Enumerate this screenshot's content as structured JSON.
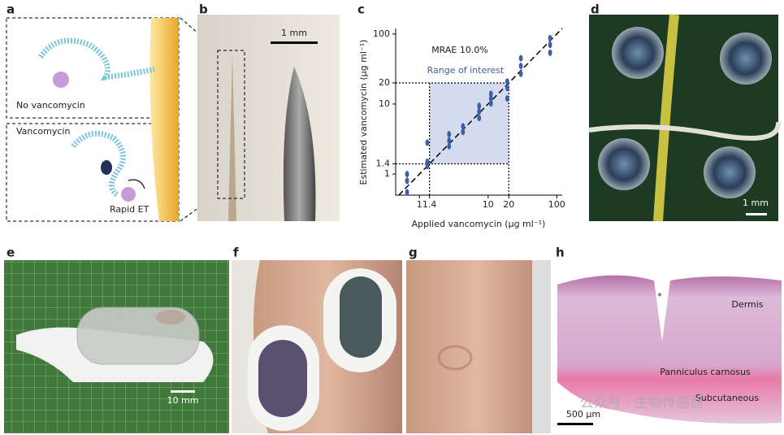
{
  "panel_labels": [
    "a",
    "b",
    "c",
    "d",
    "e",
    "f",
    "g",
    "h"
  ],
  "panel_a": {
    "top_label": "No vancomycin",
    "bottom_label": "Vancomycin",
    "et_label": "Rapid ET"
  },
  "panel_b": {
    "scale_bar": "1 mm"
  },
  "chart_data": {
    "type": "scatter",
    "annotation": "MRAE 10.0%",
    "region_label": "Range of interest",
    "region": [
      1.4,
      20
    ],
    "xlabel": "Applied vancomycin (µg ml⁻¹)",
    "ylabel": "Estimated vancomycin (µg ml⁻¹)",
    "log_scale": true,
    "xlim": [
      0.45,
      120
    ],
    "ylim": [
      0.5,
      120
    ],
    "xticks": [
      1,
      1.4,
      10,
      20,
      100
    ],
    "yticks": [
      1,
      1.4,
      10,
      20,
      100
    ],
    "series": [
      {
        "color": "#3d5ea8",
        "x": [
          0.66,
          0.66,
          0.66,
          1.3,
          1.3,
          1.3,
          2.7,
          2.7,
          2.7,
          4.3,
          4.3,
          7.4,
          7.4,
          7.4,
          11,
          11,
          11,
          19,
          19,
          19,
          30,
          30,
          30,
          80,
          80,
          80
        ],
        "values": [
          0.55,
          0.8,
          1.0,
          1.3,
          1.5,
          2.8,
          2.5,
          3.0,
          3.7,
          4.0,
          4.8,
          6.3,
          7.8,
          9.4,
          10.2,
          12,
          14,
          12,
          17,
          21,
          27,
          35,
          45,
          54,
          70,
          87
        ]
      }
    ]
  },
  "panel_d": {
    "scale_bar": "1 mm"
  },
  "panel_e": {
    "scale_bar": "10 mm"
  },
  "panel_h": {
    "labels": [
      "*",
      "Dermis",
      "Panniculus carnosus",
      "Subcutaneous"
    ],
    "scale_bar": "500 µm"
  },
  "watermark": "公众号 · 生物传感器"
}
